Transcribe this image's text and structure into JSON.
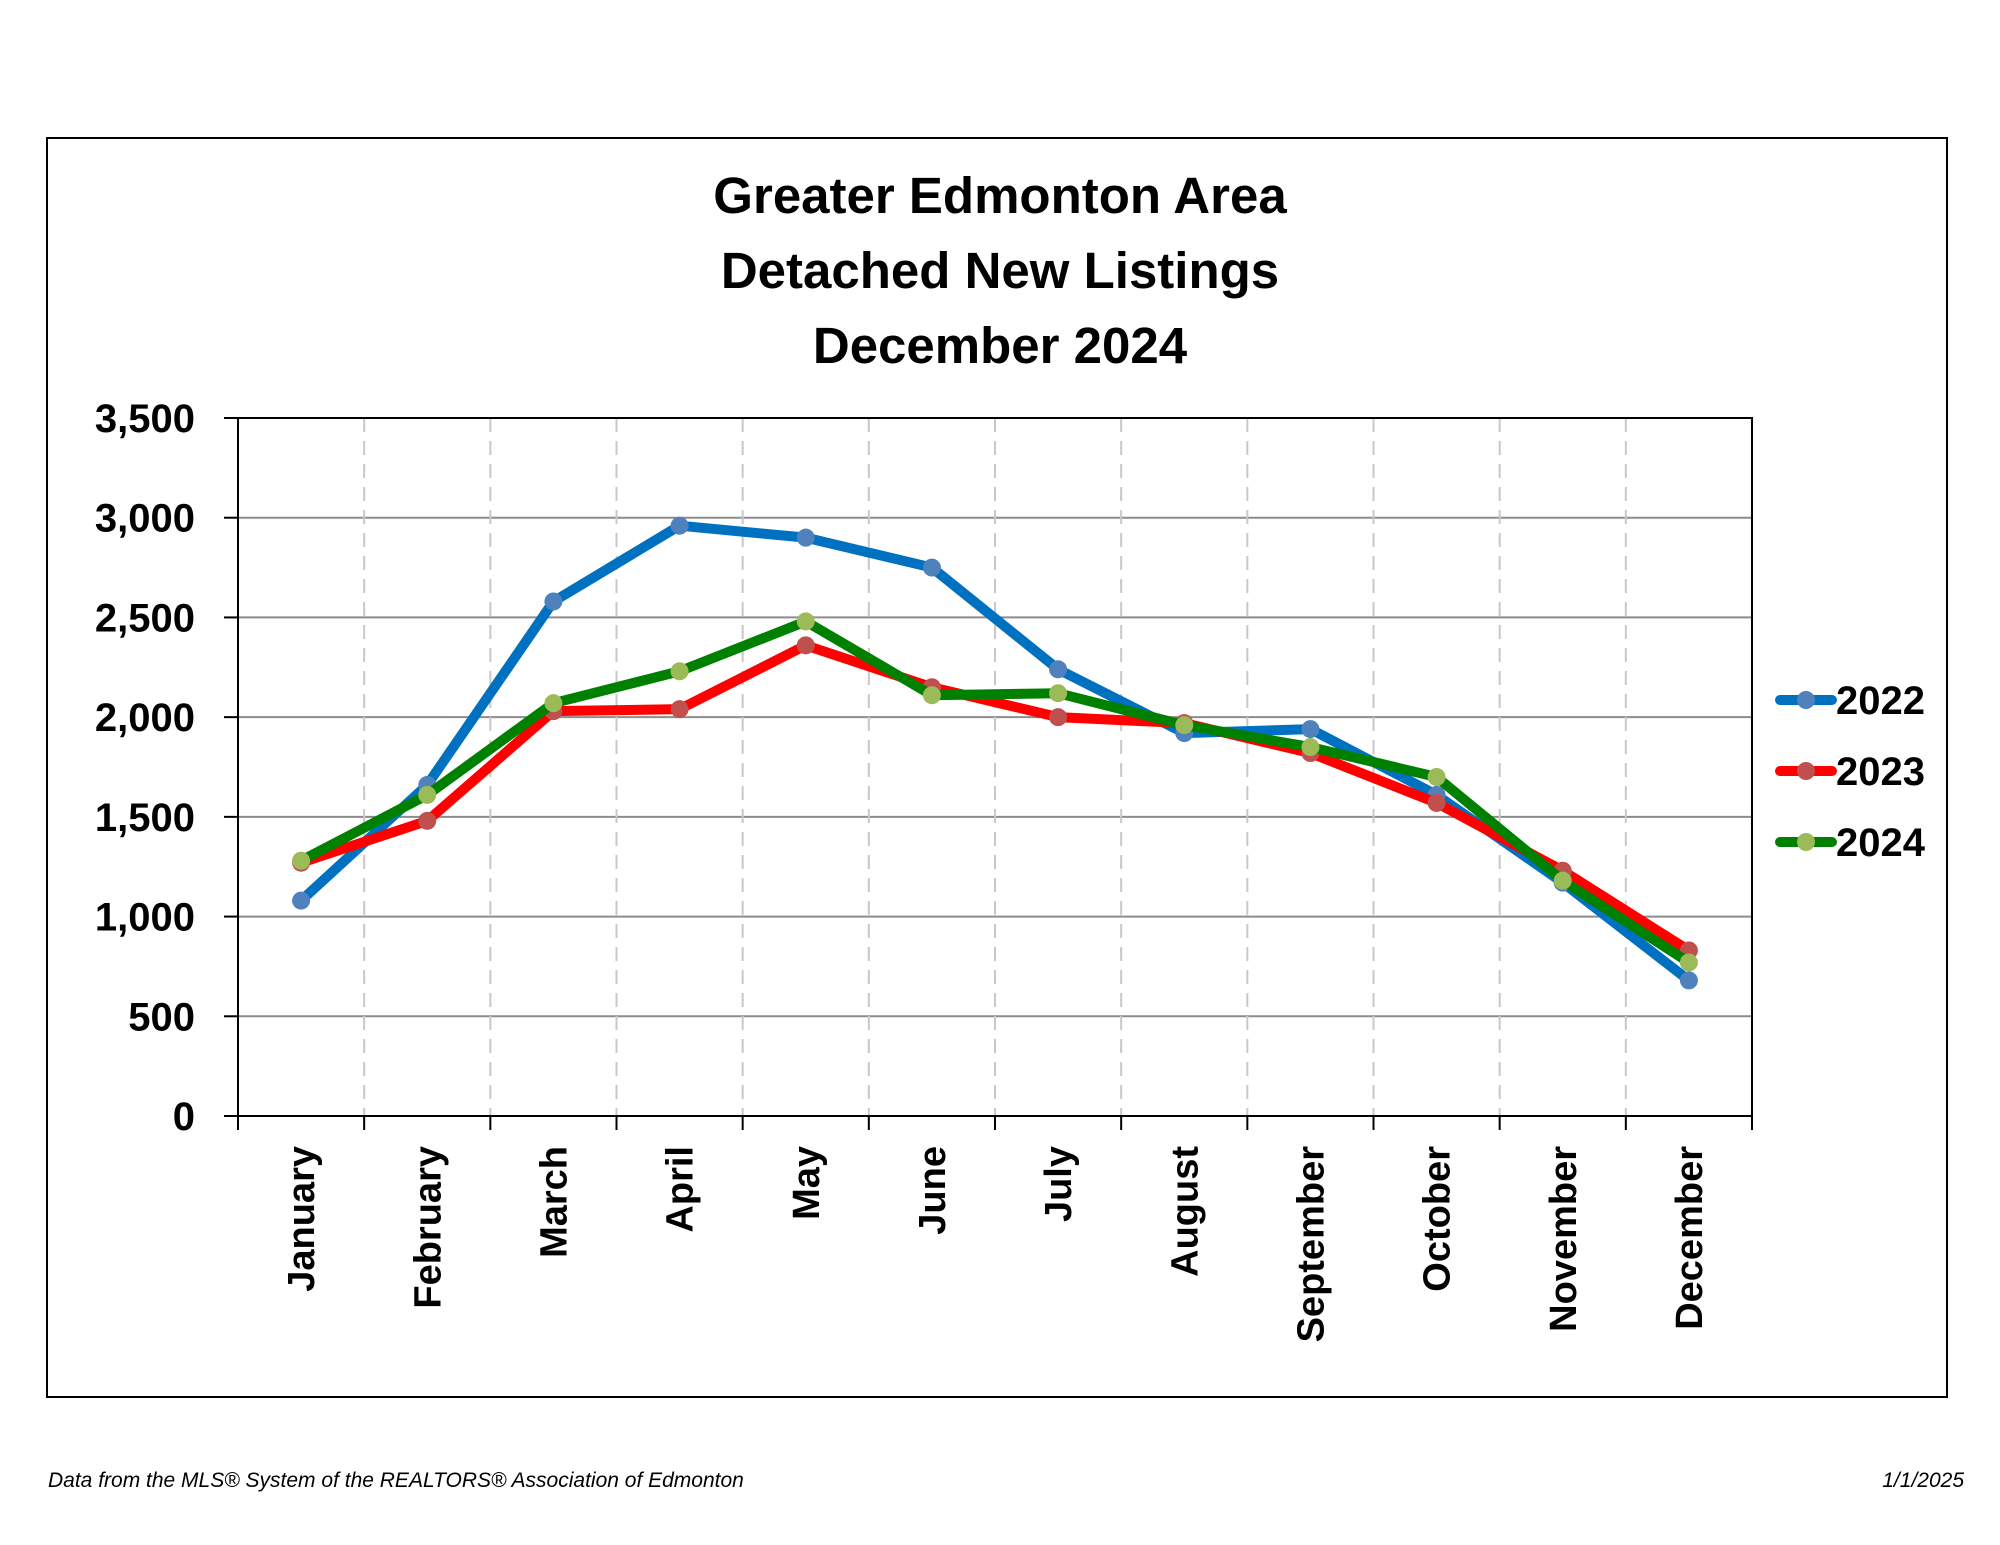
{
  "chart_data": {
    "type": "line",
    "title_lines": [
      "Greater Edmonton Area",
      "Detached New Listings",
      "December 2024"
    ],
    "categories": [
      "January",
      "February",
      "March",
      "April",
      "May",
      "June",
      "July",
      "August",
      "September",
      "October",
      "November",
      "December"
    ],
    "ylim": [
      0,
      3500
    ],
    "yticks": [
      0,
      500,
      1000,
      1500,
      2000,
      2500,
      3000,
      3500
    ],
    "ytick_labels": [
      "0",
      "500",
      "1,000",
      "1,500",
      "2,000",
      "2,500",
      "3,000",
      "3,500"
    ],
    "grid": {
      "horizontal": "solid",
      "vertical": "dashed"
    },
    "legend_position": "right",
    "series": [
      {
        "name": "2022",
        "line_color": "#0070C0",
        "marker_color": "#4F81BD",
        "values": [
          1080,
          1660,
          2580,
          2960,
          2900,
          2750,
          2240,
          1920,
          1940,
          1610,
          1170,
          680
        ]
      },
      {
        "name": "2023",
        "line_color": "#FF0000",
        "marker_color": "#C0504D",
        "values": [
          1270,
          1480,
          2030,
          2040,
          2360,
          2150,
          2000,
          1970,
          1820,
          1570,
          1230,
          830
        ]
      },
      {
        "name": "2024",
        "line_color": "#008000",
        "marker_color": "#9BBB59",
        "values": [
          1280,
          1610,
          2070,
          2230,
          2480,
          2110,
          2120,
          1960,
          1850,
          1700,
          1180,
          770
        ]
      }
    ]
  },
  "footer": {
    "source": "Data from the MLS® System of the REALTORS® Association of Edmonton",
    "date": "1/1/2025"
  }
}
